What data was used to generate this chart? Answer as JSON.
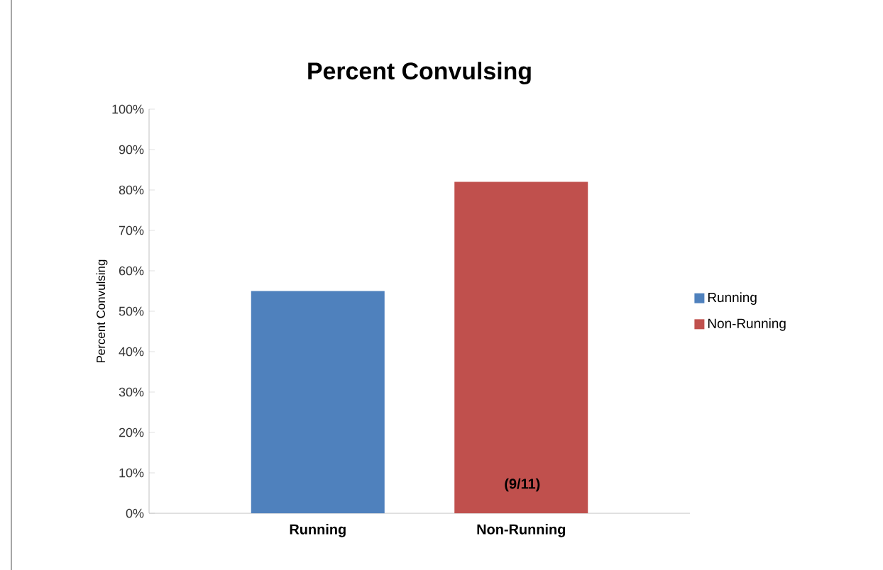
{
  "chart_data": {
    "type": "bar",
    "title": "Percent Convulsing",
    "ylabel": "Percent Convulsing",
    "categories": [
      "Running",
      "Non-Running"
    ],
    "series": [
      {
        "name": "Running",
        "color": "#4f81bd",
        "values": [
          55,
          null
        ]
      },
      {
        "name": "Non-Running",
        "color": "#c0504d",
        "values": [
          null,
          82
        ]
      }
    ],
    "ylim": [
      0,
      100
    ],
    "yticks": [
      {
        "value": 0,
        "label": "0%"
      },
      {
        "value": 10,
        "label": "10%"
      },
      {
        "value": 20,
        "label": "20%"
      },
      {
        "value": 30,
        "label": "30%"
      },
      {
        "value": 40,
        "label": "40%"
      },
      {
        "value": 50,
        "label": "50%"
      },
      {
        "value": 60,
        "label": "60%"
      },
      {
        "value": 70,
        "label": "70%"
      },
      {
        "value": 80,
        "label": "80%"
      },
      {
        "value": 90,
        "label": "90%"
      },
      {
        "value": 100,
        "label": "100%"
      }
    ],
    "annotations": [
      "(9/11)"
    ],
    "legend": "right"
  }
}
